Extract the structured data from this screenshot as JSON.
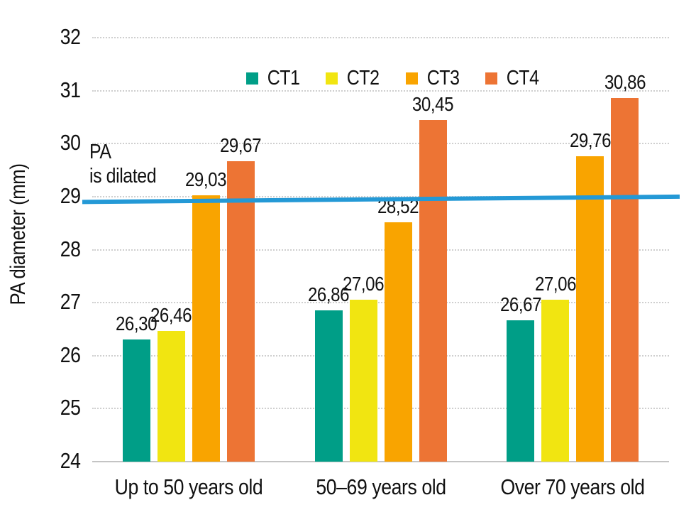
{
  "chart_data": {
    "type": "bar",
    "title": "",
    "xlabel": "",
    "ylabel": "PA diameter (mm)",
    "ylim": [
      24,
      32
    ],
    "yticks": [
      24,
      25,
      26,
      27,
      28,
      29,
      30,
      31,
      32
    ],
    "grid": "horizontal-dotted",
    "legend_position": "top-center",
    "value_decimal_separator": "comma",
    "categories": [
      "Up to 50 years old",
      "50–69 years old",
      "Over 70 years old"
    ],
    "series": [
      {
        "name": "CT1",
        "color": "#009E87",
        "values": [
          26.3,
          26.86,
          26.67
        ],
        "value_labels": [
          "26,30",
          "26,86",
          "26,67"
        ]
      },
      {
        "name": "CT2",
        "color": "#F1E511",
        "values": [
          26.46,
          27.06,
          27.06
        ],
        "value_labels": [
          "26,46",
          "27,06",
          "27,06"
        ]
      },
      {
        "name": "CT3",
        "color": "#F9A400",
        "values": [
          29.03,
          28.52,
          29.76
        ],
        "value_labels": [
          "29,03",
          "28,52",
          "29,76"
        ]
      },
      {
        "name": "CT4",
        "color": "#ED7434",
        "values": [
          29.67,
          30.45,
          30.86
        ],
        "value_labels": [
          "29,67",
          "30,45",
          "30,86"
        ]
      }
    ],
    "reference_line": {
      "value": 29,
      "start_value": 28.9,
      "end_value": 29.0,
      "color": "#2499D6",
      "annotation": {
        "line1": "PA",
        "line2": "is dilated"
      }
    },
    "colors": {
      "grid": "#CFCFCF",
      "axis": "#C4C4C4",
      "text": "#111111"
    }
  }
}
